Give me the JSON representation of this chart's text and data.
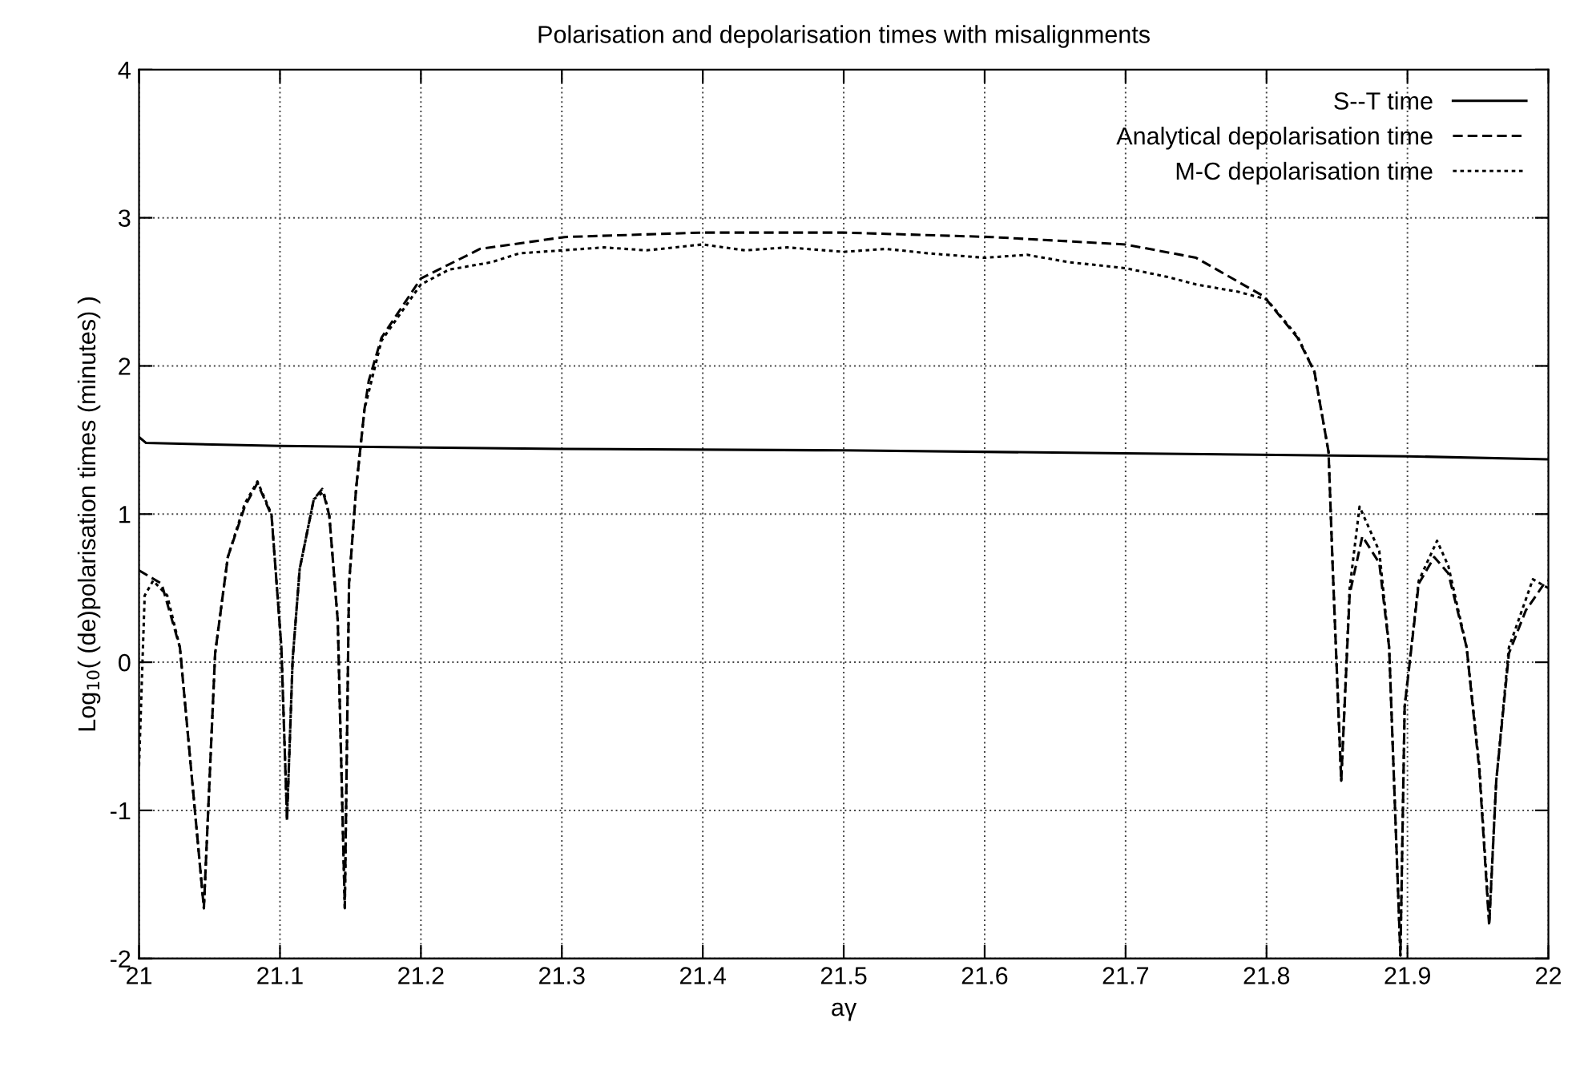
{
  "chart_data": {
    "type": "line",
    "title": "Polarisation and depolarisation times with misalignments",
    "xlabel": "aγ",
    "ylabel": "Log$_{10}$( (de)polarisation times (minutes) )",
    "xlim": [
      21,
      22
    ],
    "ylim": [
      -2,
      4
    ],
    "xticks": [
      21,
      21.1,
      21.2,
      21.3,
      21.4,
      21.5,
      21.6,
      21.7,
      21.8,
      21.9,
      22
    ],
    "yticks": [
      -2,
      -1,
      0,
      1,
      2,
      3,
      4
    ],
    "grid": true,
    "legend": "top right",
    "marker": "none",
    "series": [
      {
        "name": "S--T time",
        "color": "#000000",
        "line_style": "solid",
        "x": [
          21.0,
          21.005,
          21.1,
          21.3,
          21.5,
          21.7,
          21.9,
          22.0
        ],
        "values": [
          1.52,
          1.48,
          1.46,
          1.44,
          1.43,
          1.41,
          1.39,
          1.37
        ]
      },
      {
        "name": "Analytical depolarisation time",
        "color": "#000000",
        "line_style": "dashed",
        "x": [
          21.0,
          21.016,
          21.029,
          21.046,
          21.054,
          21.063,
          21.075,
          21.084,
          21.094,
          21.101,
          21.105,
          21.109,
          21.114,
          21.124,
          21.13,
          21.135,
          21.141,
          21.146,
          21.149,
          21.154,
          21.16,
          21.163,
          21.172,
          21.2,
          21.242,
          21.302,
          21.399,
          21.5,
          21.605,
          21.7,
          21.75,
          21.798,
          21.822,
          21.834,
          21.844,
          21.847,
          21.853,
          21.859,
          21.868,
          21.88,
          21.887,
          21.895,
          21.898,
          21.908,
          21.919,
          21.929,
          21.942,
          21.951,
          21.958,
          21.963,
          21.972,
          21.984,
          21.997,
          22.0
        ],
        "values": [
          0.62,
          0.53,
          0.1,
          -1.66,
          0.06,
          0.71,
          1.05,
          1.21,
          0.99,
          0.1,
          -1.07,
          0.02,
          0.63,
          1.1,
          1.17,
          0.99,
          0.28,
          -1.66,
          0.53,
          1.17,
          1.71,
          1.9,
          2.19,
          2.59,
          2.79,
          2.87,
          2.9,
          2.9,
          2.87,
          2.82,
          2.73,
          2.47,
          2.19,
          1.96,
          1.42,
          0.63,
          -0.8,
          0.46,
          0.85,
          0.67,
          0.1,
          -1.98,
          -0.3,
          0.53,
          0.71,
          0.6,
          0.1,
          -0.73,
          -1.78,
          -0.8,
          0.06,
          0.35,
          0.53,
          0.55
        ]
      },
      {
        "name": "M-C depolarisation time",
        "color": "#000000",
        "line_style": "dotted",
        "x": [
          21.0,
          21.004,
          21.01,
          21.02,
          21.029,
          21.046,
          21.054,
          21.063,
          21.075,
          21.084,
          21.094,
          21.101,
          21.105,
          21.109,
          21.114,
          21.124,
          21.131,
          21.135,
          21.141,
          21.146,
          21.149,
          21.154,
          21.16,
          21.172,
          21.2,
          21.22,
          21.25,
          21.27,
          21.3,
          21.33,
          21.36,
          21.4,
          21.43,
          21.46,
          21.5,
          21.53,
          21.56,
          21.6,
          21.63,
          21.66,
          21.7,
          21.73,
          21.75,
          21.78,
          21.8,
          21.822,
          21.834,
          21.844,
          21.847,
          21.853,
          21.859,
          21.866,
          21.88,
          21.887,
          21.895,
          21.898,
          21.908,
          21.921,
          21.929,
          21.942,
          21.951,
          21.958,
          21.963,
          21.972,
          21.989,
          22.0
        ],
        "values": [
          -0.7,
          0.45,
          0.55,
          0.45,
          0.1,
          -1.66,
          0.06,
          0.71,
          1.07,
          1.22,
          1.0,
          0.1,
          -1.05,
          0.02,
          0.63,
          1.1,
          1.15,
          0.99,
          0.28,
          -1.66,
          0.53,
          1.17,
          1.71,
          2.17,
          2.55,
          2.65,
          2.7,
          2.76,
          2.78,
          2.8,
          2.78,
          2.82,
          2.78,
          2.8,
          2.77,
          2.79,
          2.76,
          2.73,
          2.75,
          2.7,
          2.66,
          2.6,
          2.55,
          2.5,
          2.45,
          2.2,
          1.96,
          1.42,
          0.63,
          -0.8,
          0.5,
          1.05,
          0.75,
          0.1,
          -1.98,
          -0.3,
          0.55,
          0.82,
          0.65,
          0.1,
          -0.7,
          -1.75,
          -0.8,
          0.1,
          0.56,
          0.5
        ]
      }
    ]
  }
}
